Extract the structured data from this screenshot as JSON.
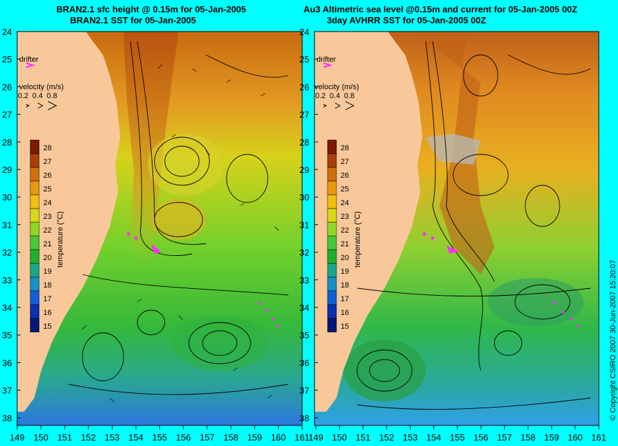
{
  "panels": {
    "left": {
      "title_line1": "BRAN2.1 sfc height @ 0.15m for 05-Jan-2005",
      "title_line2": "BRAN2.1 SST for 05-Jan-2005"
    },
    "right": {
      "title_line1": "Au3 Altimetric sea level  @0.15m and current for 05-Jan-2005 00Z",
      "title_line2": "3day AVHRR SST for 05-Jan-2005 00Z"
    }
  },
  "legend": {
    "drifter_label": "drifter",
    "velocity_label": "velocity (m/s)",
    "velocity_values": [
      "0.2",
      "0.4",
      "0.8"
    ]
  },
  "colorbar": {
    "title": "temperature (°C)",
    "values": [
      "28",
      "27",
      "26",
      "25",
      "24",
      "23",
      "22",
      "21",
      "20",
      "19",
      "18",
      "17",
      "16",
      "15"
    ],
    "colors": [
      "#7a1a00",
      "#a8400a",
      "#d0700a",
      "#e89a10",
      "#f2c010",
      "#d8d818",
      "#90d828",
      "#48c838",
      "#20b030",
      "#18a888",
      "#1890c8",
      "#1060d8",
      "#0830b0",
      "#041878"
    ]
  },
  "axes": {
    "lat_labels": [
      "24",
      "25",
      "26",
      "27",
      "28",
      "29",
      "30",
      "31",
      "32",
      "33",
      "34",
      "35",
      "36",
      "37",
      "38"
    ],
    "lon_labels": [
      "149",
      "150",
      "151",
      "152",
      "153",
      "154",
      "155",
      "156",
      "157",
      "158",
      "159",
      "160",
      "161"
    ]
  },
  "copyright": "© Copyright CSIRO 2007   30-Jun-2007 15:20:07",
  "colors": {
    "background": "#00ffff",
    "land": "#f8c89a",
    "drifter": "#ff30ff"
  }
}
